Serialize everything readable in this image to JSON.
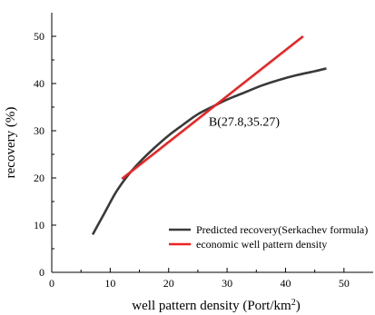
{
  "chart_data": {
    "type": "line",
    "title": "",
    "xlabel": "well pattern density (Port/km",
    "xlabel_sup": "2",
    "xlabel_tail": ")",
    "ylabel": "recovery (%)",
    "xlim": [
      0,
      55
    ],
    "ylim": [
      0,
      55
    ],
    "xticks": [
      0,
      10,
      20,
      30,
      40,
      50
    ],
    "yticks": [
      0,
      10,
      20,
      30,
      40,
      50
    ],
    "legend_position": "bottom-right",
    "series": [
      {
        "name": "Predicted recovery(Serkachev formula)",
        "color": "#3a3a3a",
        "x": [
          7,
          9,
          11,
          13,
          15,
          17.5,
          20,
          22.5,
          25,
          27.8,
          30,
          33,
          36,
          39,
          42,
          45,
          47
        ],
        "y": [
          8.0,
          12.5,
          17.0,
          20.5,
          23.3,
          26.3,
          29.0,
          31.3,
          33.5,
          35.27,
          36.6,
          38.1,
          39.6,
          40.8,
          41.8,
          42.6,
          43.2
        ]
      },
      {
        "name": "economic well pattern density",
        "color": "#ee2222",
        "x": [
          12,
          43
        ],
        "y": [
          19.8,
          50.0
        ]
      }
    ],
    "annotations": [
      {
        "text": "B(27.8,35.27)",
        "x": 27.8,
        "y": 35.27
      }
    ]
  }
}
